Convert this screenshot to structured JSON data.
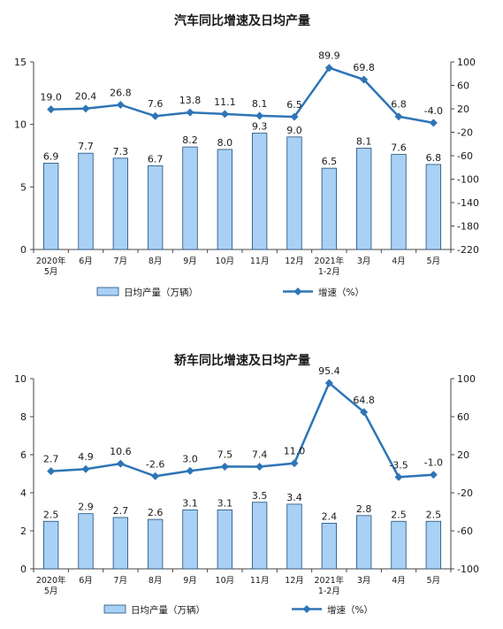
{
  "colors": {
    "bar_fill": "#a9d0f5",
    "bar_stroke": "#1f4e79",
    "line": "#2e75b6",
    "axis": "#444444"
  },
  "chart_data": [
    {
      "type": "bar+line",
      "title": "汽车同比增速及日均产量",
      "categories": [
        [
          "2020年",
          "5月"
        ],
        [
          "6月"
        ],
        [
          "7月"
        ],
        [
          "8月"
        ],
        [
          "9月"
        ],
        [
          "10月"
        ],
        [
          "11月"
        ],
        [
          "12月"
        ],
        [
          "2021年",
          "1-2月"
        ],
        [
          "3月"
        ],
        [
          "4月"
        ],
        [
          "5月"
        ]
      ],
      "left_axis": {
        "ylim": [
          0,
          15
        ],
        "ticks": [
          0,
          5,
          10,
          15
        ]
      },
      "right_axis": {
        "ylim": [
          -220,
          100
        ],
        "ticks": [
          100,
          60,
          20,
          -20,
          -60,
          -100,
          -140,
          -180,
          -220
        ]
      },
      "series": [
        {
          "name": "日均产量（万辆）",
          "kind": "bar",
          "axis": "left",
          "values": [
            6.9,
            7.7,
            7.3,
            6.7,
            8.2,
            8.0,
            9.3,
            9.0,
            6.5,
            8.1,
            7.6,
            6.8
          ]
        },
        {
          "name": "增速（%）",
          "kind": "line",
          "axis": "right",
          "values": [
            19.0,
            20.4,
            26.8,
            7.6,
            13.8,
            11.1,
            8.1,
            6.5,
            89.9,
            69.8,
            6.8,
            -4.0
          ]
        }
      ],
      "legend": {
        "position": "bottom"
      }
    },
    {
      "type": "bar+line",
      "title": "轿车同比增速及日均产量",
      "categories": [
        [
          "2020年",
          "5月"
        ],
        [
          "6月"
        ],
        [
          "7月"
        ],
        [
          "8月"
        ],
        [
          "9月"
        ],
        [
          "10月"
        ],
        [
          "11月"
        ],
        [
          "12月"
        ],
        [
          "2021年",
          "1-2月"
        ],
        [
          "3月"
        ],
        [
          "4月"
        ],
        [
          "5月"
        ]
      ],
      "left_axis": {
        "ylim": [
          0,
          10
        ],
        "ticks": [
          0,
          2,
          4,
          6,
          8,
          10
        ]
      },
      "right_axis": {
        "ylim": [
          -100,
          100
        ],
        "ticks": [
          100,
          60,
          20,
          -20,
          -60,
          -100
        ]
      },
      "series": [
        {
          "name": "日均产量（万辆）",
          "kind": "bar",
          "axis": "left",
          "values": [
            2.5,
            2.9,
            2.7,
            2.6,
            3.1,
            3.1,
            3.5,
            3.4,
            2.4,
            2.8,
            2.5,
            2.5
          ]
        },
        {
          "name": "增速（%）",
          "kind": "line",
          "axis": "right",
          "values": [
            2.7,
            4.9,
            10.6,
            -2.6,
            3.0,
            7.5,
            7.4,
            11.0,
            95.4,
            64.8,
            -3.5,
            -1.0
          ]
        }
      ],
      "legend": {
        "position": "bottom"
      }
    }
  ]
}
